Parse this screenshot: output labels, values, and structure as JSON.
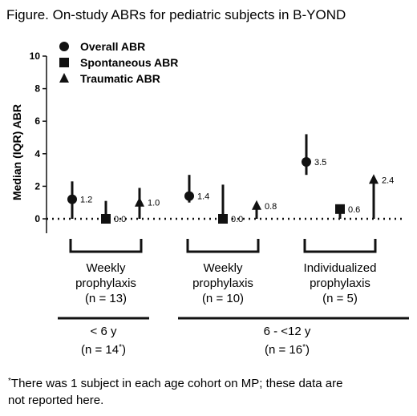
{
  "chart_data": {
    "type": "scatter",
    "title": "Figure. On-study ABRs for pediatric subjects in B-YOND",
    "ylabel": "Median (IQR) ABR",
    "ylim": [
      0,
      10
    ],
    "yticks": [
      "0",
      "2",
      "4",
      "6",
      "8",
      "10"
    ],
    "reference_line": {
      "y": 0,
      "style": "dotted"
    },
    "legend": {
      "placement": "top-left",
      "entries": [
        {
          "name": "Overall ABR",
          "marker": "circle"
        },
        {
          "name": "Spontaneous ABR",
          "marker": "square"
        },
        {
          "name": "Traumatic ABR",
          "marker": "triangle"
        }
      ]
    },
    "groups": [
      {
        "name": [
          "Weekly",
          "prophylaxis",
          "(n = 13)"
        ],
        "points": [
          {
            "type": "Overall ABR",
            "median": 1.2,
            "q1": 0.0,
            "q3": 2.3,
            "label": "1.2"
          },
          {
            "type": "Spontaneous ABR",
            "median": 0.0,
            "q1": 0.0,
            "q3": 1.1,
            "label": "0.0"
          },
          {
            "type": "Traumatic ABR",
            "median": 1.0,
            "q1": 0.0,
            "q3": 1.9,
            "label": "1.0"
          }
        ]
      },
      {
        "name": [
          "Weekly",
          "prophylaxis",
          "(n = 10)"
        ],
        "points": [
          {
            "type": "Overall ABR",
            "median": 1.4,
            "q1": 1.0,
            "q3": 2.7,
            "label": "1.4"
          },
          {
            "type": "Spontaneous ABR",
            "median": 0.0,
            "q1": 0.0,
            "q3": 2.1,
            "label": "0.0"
          },
          {
            "type": "Traumatic ABR",
            "median": 0.8,
            "q1": 0.0,
            "q3": 0.9,
            "label": "0.8"
          }
        ]
      },
      {
        "name": [
          "Individualized",
          "prophylaxis",
          "(n = 5)"
        ],
        "points": [
          {
            "type": "Overall ABR",
            "median": 3.5,
            "q1": 2.7,
            "q3": 5.2,
            "label": "3.5"
          },
          {
            "type": "Spontaneous ABR",
            "median": 0.6,
            "q1": 0.0,
            "q3": 0.6,
            "label": "0.6"
          },
          {
            "type": "Traumatic ABR",
            "median": 2.4,
            "q1": 0.0,
            "q3": 2.4,
            "label": "2.4"
          }
        ]
      }
    ],
    "age_cohorts": [
      {
        "label": "< 6 y",
        "n": "(n = 14",
        "superscript": "*",
        "close": ")",
        "groups": [
          0
        ]
      },
      {
        "label": "6 - <12 y",
        "n": "(n = 16",
        "superscript": "*",
        "close": ")",
        "groups": [
          1,
          2
        ]
      }
    ]
  },
  "footnote": {
    "mark": "*",
    "line1": "There was 1 subject in each age cohort on MP; these data are",
    "line2": "not reported here."
  }
}
